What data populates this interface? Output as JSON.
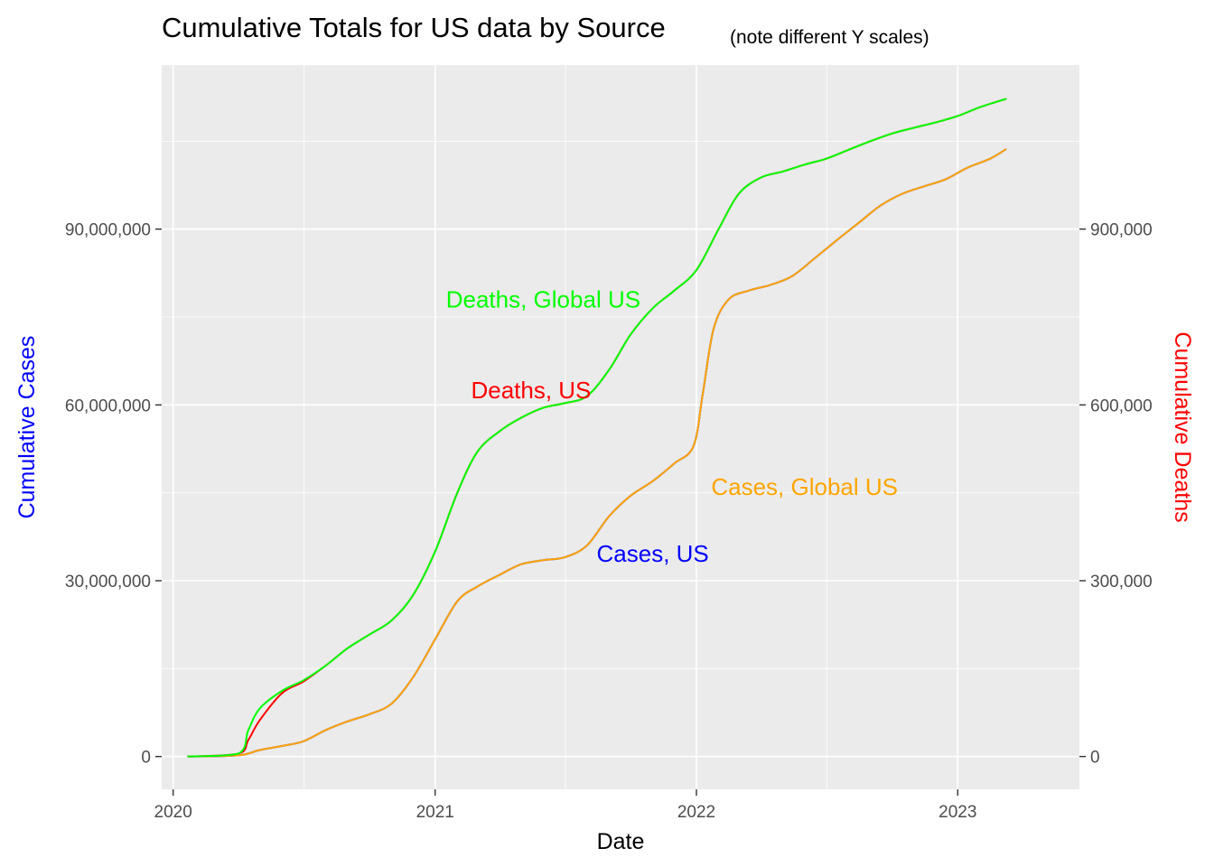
{
  "chart_data": {
    "type": "line",
    "title": "Cumulative Totals for US data by Source",
    "subtitle": "(note different Y scales)",
    "xlabel": "Date",
    "ylabel_left": "Cumulative Cases",
    "ylabel_right": "Cumulative Deaths",
    "x_ticks": [
      "2020",
      "2021",
      "2022",
      "2023"
    ],
    "y_left_ticks": [
      "0",
      "30,000,000",
      "60,000,000",
      "90,000,000"
    ],
    "y_right_ticks": [
      "0",
      "300,000",
      "600,000",
      "900,000"
    ],
    "y_left_range": [
      -5600000,
      118000000
    ],
    "y_right_range": [
      -56000,
      1180000
    ],
    "x_range": [
      "2019-12-16",
      "2023-06-20"
    ],
    "grid": true,
    "colors": {
      "background": "#EBEBEB",
      "grid": "#FFFFFF",
      "cases_us": "#0000FF",
      "cases_global": "#FFA500",
      "deaths_us": "#FF0000",
      "deaths_global": "#00FF00",
      "ylabel_left": "#0000FF",
      "ylabel_right": "#FF0000"
    },
    "annotations": [
      {
        "text": "Deaths, Global US",
        "x": "2021-06-01",
        "y_cases": 78000000,
        "color": "#00FF00"
      },
      {
        "text": "Deaths, US",
        "x": "2021-05-15",
        "y_cases": 62500000,
        "color": "#FF0000"
      },
      {
        "text": "Cases, Global US",
        "x": "2022-06-01",
        "y_cases": 46000000,
        "color": "#FFA500"
      },
      {
        "text": "Cases, US",
        "x": "2021-11-01",
        "y_cases": 34600000,
        "color": "#0000FF"
      }
    ],
    "series": [
      {
        "name": "Cases, US",
        "axis": "left",
        "color": "#0000FF",
        "x": [
          "2020-01-22",
          "2020-04-01",
          "2020-05-01",
          "2020-06-01",
          "2020-07-01",
          "2020-08-01",
          "2020-09-01",
          "2020-10-01",
          "2020-11-01",
          "2020-12-01",
          "2021-01-01",
          "2021-02-01",
          "2021-03-01",
          "2021-04-01",
          "2021-05-01",
          "2021-06-01",
          "2021-07-01",
          "2021-08-01",
          "2021-09-01",
          "2021-10-01",
          "2021-11-01",
          "2021-12-01",
          "2021-12-28",
          "2022-01-10",
          "2022-01-25",
          "2022-02-15",
          "2022-03-15",
          "2022-04-15",
          "2022-05-15",
          "2022-06-15",
          "2022-07-15",
          "2022-08-15",
          "2022-09-15",
          "2022-10-15",
          "2022-11-15",
          "2022-12-15",
          "2023-01-15",
          "2023-02-15",
          "2023-03-09"
        ],
        "values": [
          0,
          200000,
          1100000,
          1800000,
          2600000,
          4500000,
          6000000,
          7200000,
          9000000,
          13500000,
          20000000,
          26500000,
          29000000,
          31000000,
          32800000,
          33500000,
          34000000,
          36000000,
          41000000,
          44500000,
          47000000,
          50000000,
          53000000,
          62000000,
          73000000,
          78000000,
          79500000,
          80500000,
          82000000,
          85000000,
          88000000,
          91000000,
          94000000,
          96000000,
          97300000,
          98500000,
          100500000,
          102000000,
          103600000
        ]
      },
      {
        "name": "Cases, Global US",
        "axis": "left",
        "color": "#FFA500",
        "x": [
          "2020-01-22",
          "2020-04-01",
          "2020-05-01",
          "2020-06-01",
          "2020-07-01",
          "2020-08-01",
          "2020-09-01",
          "2020-10-01",
          "2020-11-01",
          "2020-12-01",
          "2021-01-01",
          "2021-02-01",
          "2021-03-01",
          "2021-04-01",
          "2021-05-01",
          "2021-06-01",
          "2021-07-01",
          "2021-08-01",
          "2021-09-01",
          "2021-10-01",
          "2021-11-01",
          "2021-12-01",
          "2021-12-28",
          "2022-01-10",
          "2022-01-25",
          "2022-02-15",
          "2022-03-15",
          "2022-04-15",
          "2022-05-15",
          "2022-06-15",
          "2022-07-15",
          "2022-08-15",
          "2022-09-15",
          "2022-10-15",
          "2022-11-15",
          "2022-12-15",
          "2023-01-15",
          "2023-02-15",
          "2023-03-09"
        ],
        "values": [
          0,
          200000,
          1100000,
          1800000,
          2600000,
          4500000,
          6000000,
          7200000,
          9000000,
          13500000,
          20000000,
          26500000,
          29000000,
          31000000,
          32800000,
          33500000,
          34000000,
          36000000,
          41000000,
          44500000,
          47000000,
          50000000,
          53000000,
          62000000,
          73000000,
          78000000,
          79500000,
          80500000,
          82000000,
          85000000,
          88000000,
          91000000,
          94000000,
          96000000,
          97300000,
          98500000,
          100500000,
          102000000,
          103600000
        ]
      },
      {
        "name": "Deaths, US",
        "axis": "right",
        "color": "#FF0000",
        "x": [
          "2020-01-22",
          "2020-04-01",
          "2020-04-15",
          "2020-05-01",
          "2020-06-01",
          "2020-07-01",
          "2020-08-01",
          "2020-09-01",
          "2020-10-01",
          "2020-11-01",
          "2020-12-01",
          "2021-01-01",
          "2021-02-01",
          "2021-03-01",
          "2021-04-01",
          "2021-05-01",
          "2021-06-01",
          "2021-07-01",
          "2021-08-01",
          "2021-09-01",
          "2021-10-01",
          "2021-11-01",
          "2021-12-01",
          "2022-01-01",
          "2022-02-01",
          "2022-03-01",
          "2022-04-01",
          "2022-05-01",
          "2022-06-01",
          "2022-07-01",
          "2022-08-01",
          "2022-09-01",
          "2022-10-01",
          "2022-11-01",
          "2022-12-01",
          "2023-01-01",
          "2023-02-01",
          "2023-03-09"
        ],
        "values": [
          0,
          5000,
          28000,
          62000,
          108000,
          128000,
          155000,
          185000,
          208000,
          232000,
          275000,
          350000,
          450000,
          520000,
          555000,
          578000,
          595000,
          603000,
          615000,
          660000,
          720000,
          765000,
          795000,
          830000,
          900000,
          960000,
          988000,
          998000,
          1010000,
          1020000,
          1035000,
          1050000,
          1063000,
          1073000,
          1082000,
          1093000,
          1108000,
          1122000
        ]
      },
      {
        "name": "Deaths, Global US",
        "axis": "right",
        "color": "#00FF00",
        "x": [
          "2020-01-22",
          "2020-04-01",
          "2020-04-15",
          "2020-05-01",
          "2020-06-01",
          "2020-07-01",
          "2020-08-01",
          "2020-09-01",
          "2020-10-01",
          "2020-11-01",
          "2020-12-01",
          "2021-01-01",
          "2021-02-01",
          "2021-03-01",
          "2021-04-01",
          "2021-05-01",
          "2021-06-01",
          "2021-07-01",
          "2021-08-01",
          "2021-09-01",
          "2021-10-01",
          "2021-11-01",
          "2021-12-01",
          "2022-01-01",
          "2022-02-01",
          "2022-03-01",
          "2022-04-01",
          "2022-05-01",
          "2022-06-01",
          "2022-07-01",
          "2022-08-01",
          "2022-09-01",
          "2022-10-01",
          "2022-11-01",
          "2022-12-01",
          "2023-01-01",
          "2023-02-01",
          "2023-03-09"
        ],
        "values": [
          0,
          5000,
          45000,
          82000,
          112000,
          130000,
          155000,
          185000,
          208000,
          232000,
          275000,
          350000,
          450000,
          520000,
          555000,
          578000,
          595000,
          603000,
          615000,
          660000,
          720000,
          765000,
          795000,
          830000,
          900000,
          960000,
          988000,
          998000,
          1010000,
          1020000,
          1035000,
          1050000,
          1063000,
          1073000,
          1082000,
          1093000,
          1108000,
          1122000
        ]
      }
    ]
  }
}
